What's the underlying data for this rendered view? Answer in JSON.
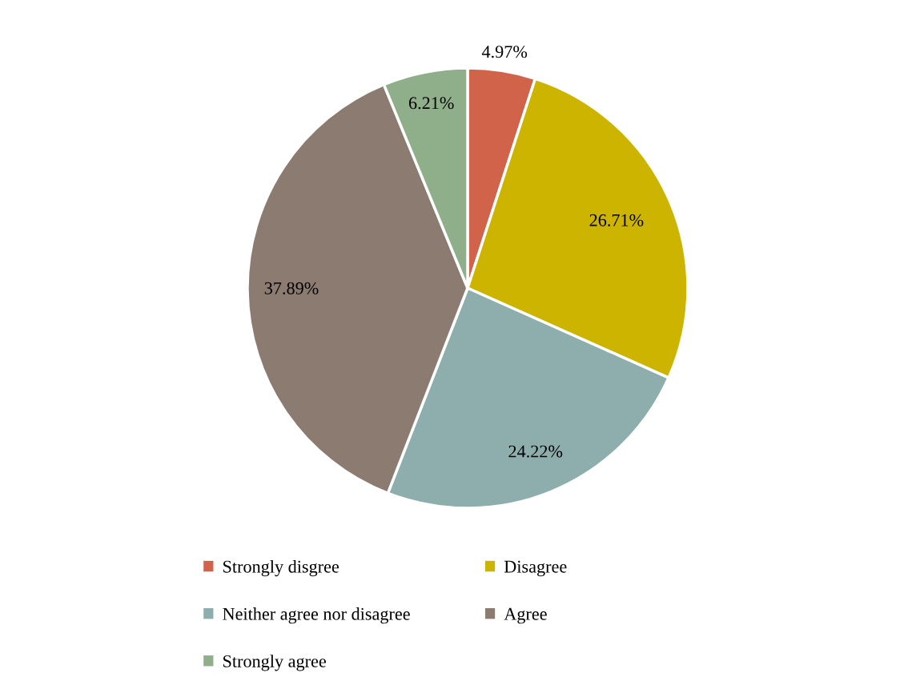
{
  "chart_data": {
    "type": "pie",
    "categories": [
      "Strongly disgree",
      "Disagree",
      "Neither agree nor disagree",
      "Agree",
      "Strongly agree"
    ],
    "values": [
      4.97,
      26.71,
      24.22,
      37.89,
      6.21
    ],
    "colors": [
      "#d0634a",
      "#cdb400",
      "#8eaeae",
      "#8b7b70",
      "#8fae8a"
    ],
    "value_labels": [
      "4.97%",
      "26.71%",
      "24.22%",
      "37.89%",
      "6.21%"
    ],
    "legend": "bottom"
  }
}
